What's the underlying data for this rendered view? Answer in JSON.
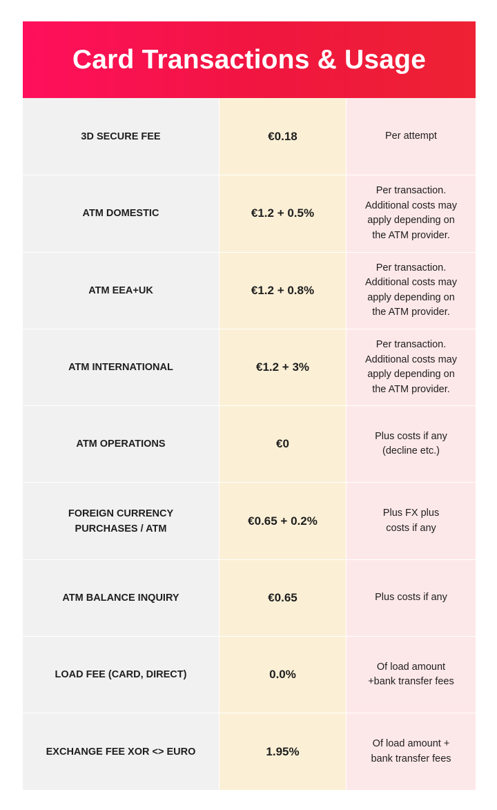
{
  "header": {
    "title": "Card Transactions & Usage"
  },
  "rows": [
    {
      "label": "3D SECURE FEE",
      "value": "€0.18",
      "note": "Per attempt"
    },
    {
      "label": "ATM DOMESTIC",
      "value": "€1.2 + 0.5%",
      "note": "Per transaction.\nAdditional costs may\napply depending on\nthe ATM provider."
    },
    {
      "label": "ATM EEA+UK",
      "value": "€1.2 + 0.8%",
      "note": "Per transaction.\nAdditional costs may\napply depending on\nthe ATM provider."
    },
    {
      "label": "ATM INTERNATIONAL",
      "value": "€1.2 + 3%",
      "note": "Per transaction.\nAdditional costs may\napply depending on\nthe ATM provider."
    },
    {
      "label": "ATM OPERATIONS",
      "value": "€0",
      "note": "Plus costs if any\n(decline etc.)"
    },
    {
      "label": "FOREIGN CURRENCY\nPURCHASES / ATM",
      "value": "€0.65 + 0.2%",
      "note": "Plus FX plus\ncosts if any"
    },
    {
      "label": "ATM BALANCE INQUIRY",
      "value": "€0.65",
      "note": "Plus costs if any"
    },
    {
      "label": "LOAD FEE (CARD, DIRECT)",
      "value": "0.0%",
      "note": "Of load amount\n+bank transfer fees"
    },
    {
      "label": "EXCHANGE FEE XOR <> EURO",
      "value": "1.95%",
      "note": "Of load amount +\nbank transfer fees"
    }
  ]
}
